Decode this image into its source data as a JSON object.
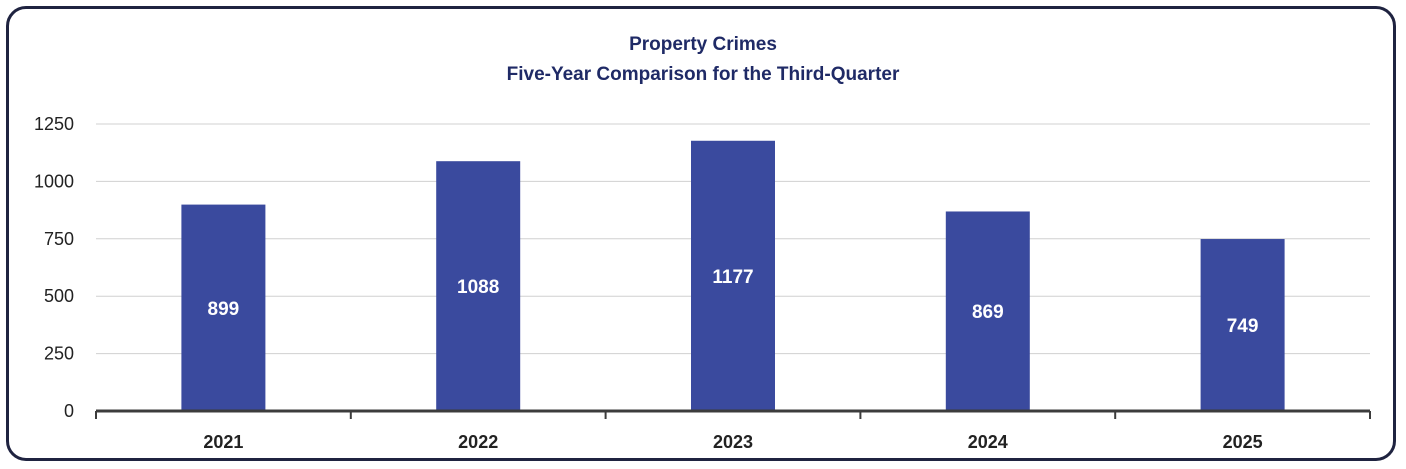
{
  "chart_data": {
    "type": "bar",
    "title": "Property Crimes",
    "subtitle": "Five-Year Comparison for the Third-Quarter",
    "categories": [
      "2021",
      "2022",
      "2023",
      "2024",
      "2025"
    ],
    "values": [
      899,
      1088,
      1177,
      869,
      749
    ],
    "data_labels": [
      "899",
      "1088",
      "1177",
      "869",
      "749"
    ],
    "ylim": [
      0,
      1250
    ],
    "yticks": [
      0,
      250,
      500,
      750,
      1000,
      1250
    ],
    "ytick_labels": [
      "0",
      "250",
      "500",
      "750",
      "1000",
      "1250"
    ],
    "xlabel": "",
    "ylabel": "",
    "grid": true,
    "legend": "none",
    "bar_color": "#3a4a9e",
    "title_color": "#1f2a66",
    "frame_color": "#1f2340"
  }
}
